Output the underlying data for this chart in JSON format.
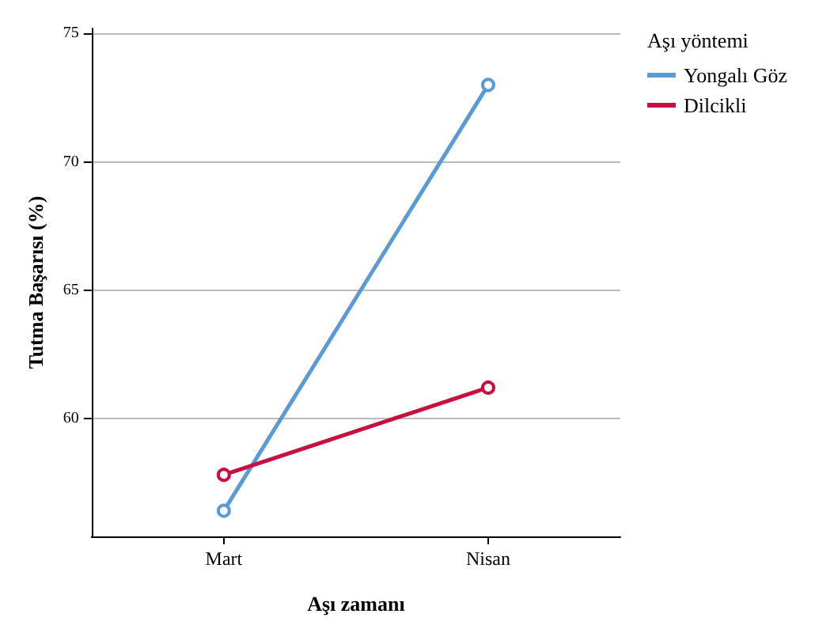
{
  "chart_data": {
    "type": "line",
    "xlabel": "Aşı zamanı",
    "ylabel": "Tutma Başarısı (%)",
    "legend_title": "Aşı yöntemi",
    "categories": [
      "Mart",
      "Nisan"
    ],
    "series": [
      {
        "name": "Yongalı Göz",
        "color": "#5b9bd5",
        "values": [
          56.4,
          73.0
        ]
      },
      {
        "name": "Dilcikli",
        "color": "#c8103f",
        "values": [
          57.8,
          61.2
        ]
      }
    ],
    "ylim": [
      55.4,
      75.2
    ],
    "yticks": [
      60,
      65,
      70,
      75
    ],
    "grid": "y",
    "legend": "top right",
    "marker": "circle",
    "line_style": "solid"
  }
}
